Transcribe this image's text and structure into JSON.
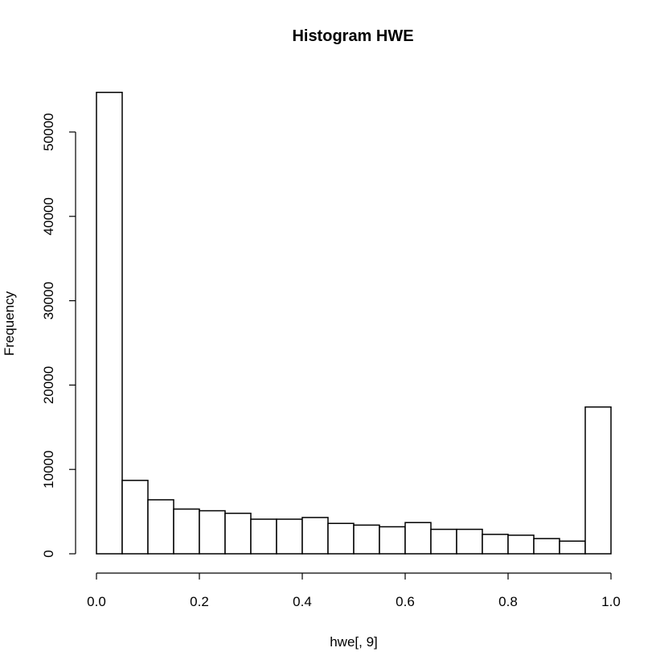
{
  "chart_data": {
    "type": "bar",
    "title": "Histogram HWE",
    "xlabel": "hwe[, 9]",
    "ylabel": "Frequency",
    "xlim": [
      0,
      1
    ],
    "ylim": [
      0,
      50000
    ],
    "x_ticks": [
      0.0,
      0.2,
      0.4,
      0.6,
      0.8,
      1.0
    ],
    "x_tick_labels": [
      "0.0",
      "0.2",
      "0.4",
      "0.6",
      "0.8",
      "1.0"
    ],
    "y_ticks": [
      0,
      10000,
      20000,
      30000,
      40000,
      50000
    ],
    "y_tick_labels": [
      "0",
      "10000",
      "20000",
      "30000",
      "40000",
      "50000"
    ],
    "bin_width": 0.05,
    "bin_edges": [
      0.0,
      0.05,
      0.1,
      0.15,
      0.2,
      0.25,
      0.3,
      0.35,
      0.4,
      0.45,
      0.5,
      0.55,
      0.6,
      0.65,
      0.7,
      0.75,
      0.8,
      0.85,
      0.9,
      0.95,
      1.0
    ],
    "values": [
      54700,
      8700,
      6400,
      5300,
      5100,
      4800,
      4100,
      4100,
      4300,
      3600,
      3400,
      3200,
      3700,
      2900,
      2900,
      2300,
      2200,
      1800,
      1500,
      17400
    ]
  }
}
